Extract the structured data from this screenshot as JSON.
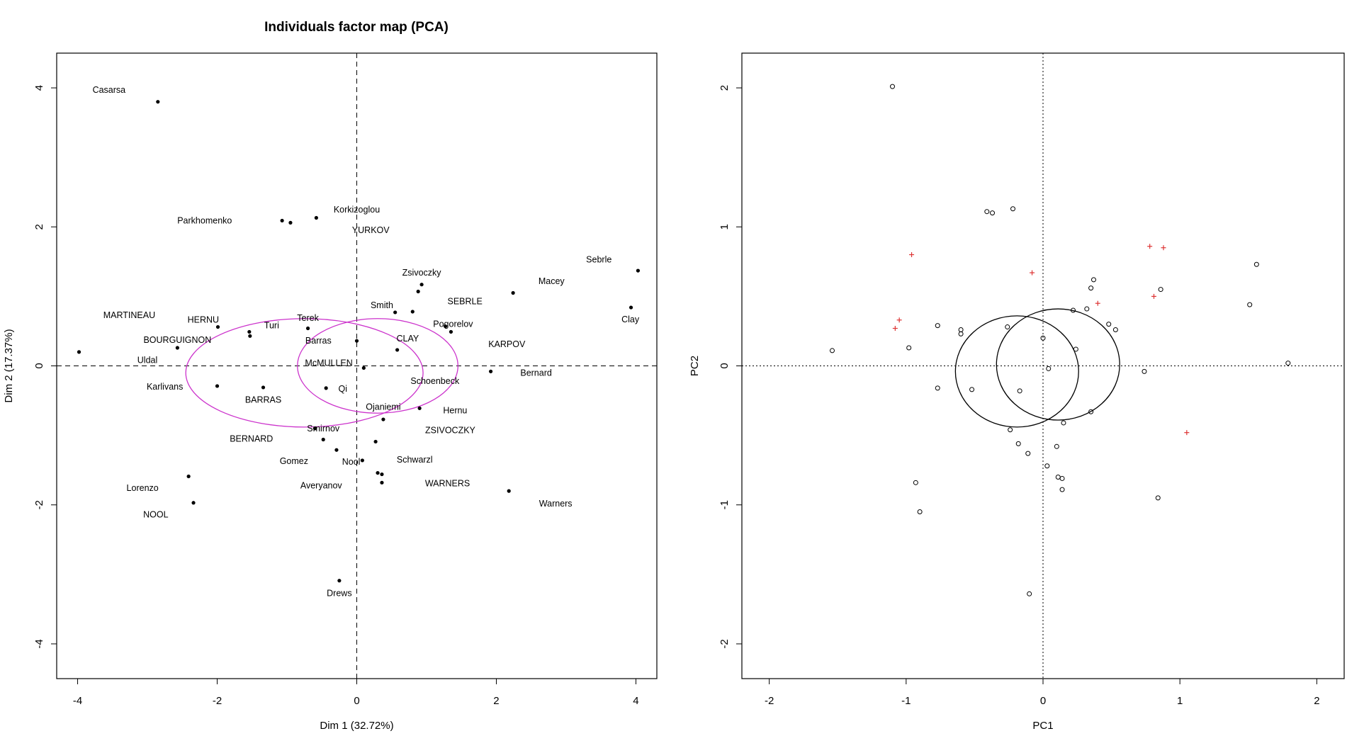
{
  "chart_data": [
    {
      "type": "scatter",
      "title": "Individuals factor map (PCA)",
      "xlabel": "Dim 1 (32.72%)",
      "ylabel": "Dim 2 (17.37%)",
      "xlim": [
        -4.3,
        4.3
      ],
      "ylim": [
        -4.5,
        4.5
      ],
      "xticks": [
        -4,
        -2,
        0,
        2,
        4
      ],
      "yticks": [
        -4,
        -2,
        0,
        2,
        4
      ],
      "reference_lines": "dashed lines at x = 0 and y = 0",
      "grid": false,
      "legend": "none",
      "point_color": "#000000",
      "ellipse_color": "#cc33cc",
      "ellipses": [
        {
          "cx": -0.75,
          "cy": -0.1,
          "rx": 1.7,
          "ry": 0.78
        },
        {
          "cx": 0.3,
          "cy": 0.0,
          "rx": 1.15,
          "ry": 0.68
        }
      ],
      "points": [
        {
          "x": -2.85,
          "y": 3.8
        },
        {
          "x": -1.07,
          "y": 2.09
        },
        {
          "x": -0.95,
          "y": 2.06
        },
        {
          "x": -0.58,
          "y": 2.13
        },
        {
          "x": 0.93,
          "y": 1.17
        },
        {
          "x": 0.88,
          "y": 1.07
        },
        {
          "x": 2.24,
          "y": 1.05
        },
        {
          "x": 4.03,
          "y": 1.37
        },
        {
          "x": 3.93,
          "y": 0.84
        },
        {
          "x": 0.8,
          "y": 0.78
        },
        {
          "x": 0.55,
          "y": 0.77
        },
        {
          "x": 1.27,
          "y": 0.57
        },
        {
          "x": 1.35,
          "y": 0.49
        },
        {
          "x": -1.99,
          "y": 0.56
        },
        {
          "x": -1.54,
          "y": 0.49
        },
        {
          "x": -1.53,
          "y": 0.43
        },
        {
          "x": -0.7,
          "y": 0.54
        },
        {
          "x": -2.57,
          "y": 0.26
        },
        {
          "x": -3.98,
          "y": 0.2
        },
        {
          "x": 0.0,
          "y": 0.36
        },
        {
          "x": 0.58,
          "y": 0.23
        },
        {
          "x": 0.1,
          "y": -0.03
        },
        {
          "x": 1.92,
          "y": -0.08
        },
        {
          "x": -2.0,
          "y": -0.29
        },
        {
          "x": -1.34,
          "y": -0.31
        },
        {
          "x": -0.44,
          "y": -0.32
        },
        {
          "x": 0.9,
          "y": -0.61
        },
        {
          "x": 0.38,
          "y": -0.77
        },
        {
          "x": -0.6,
          "y": -0.9
        },
        {
          "x": -0.48,
          "y": -1.06
        },
        {
          "x": -0.29,
          "y": -1.21
        },
        {
          "x": 0.27,
          "y": -1.09
        },
        {
          "x": 0.08,
          "y": -1.36
        },
        {
          "x": 0.3,
          "y": -1.54
        },
        {
          "x": 0.36,
          "y": -1.56
        },
        {
          "x": 0.36,
          "y": -1.68
        },
        {
          "x": -2.41,
          "y": -1.59
        },
        {
          "x": -2.34,
          "y": -1.97
        },
        {
          "x": 2.18,
          "y": -1.8
        },
        {
          "x": -0.25,
          "y": -3.09
        }
      ],
      "labels": [
        {
          "text": "Casarsa",
          "x": -3.55,
          "y": 3.97
        },
        {
          "text": "Parkhomenko",
          "x": -2.18,
          "y": 2.09
        },
        {
          "text": "Korkizoglou",
          "x": 0.0,
          "y": 2.25
        },
        {
          "text": "YURKOV",
          "x": 0.2,
          "y": 1.95
        },
        {
          "text": "Sebrle",
          "x": 3.47,
          "y": 1.53
        },
        {
          "text": "Zsivoczky",
          "x": 0.93,
          "y": 1.34
        },
        {
          "text": "Macey",
          "x": 2.79,
          "y": 1.22
        },
        {
          "text": "SEBRLE",
          "x": 1.55,
          "y": 0.93
        },
        {
          "text": "Smith",
          "x": 0.36,
          "y": 0.87
        },
        {
          "text": "MARTINEAU",
          "x": -3.26,
          "y": 0.73
        },
        {
          "text": "HERNU",
          "x": -2.2,
          "y": 0.66
        },
        {
          "text": "Terek",
          "x": -0.7,
          "y": 0.69
        },
        {
          "text": "Turi",
          "x": -1.22,
          "y": 0.58
        },
        {
          "text": "Pogorelov",
          "x": 1.38,
          "y": 0.6
        },
        {
          "text": "Clay",
          "x": 3.92,
          "y": 0.67
        },
        {
          "text": "CLAY",
          "x": 0.73,
          "y": 0.39
        },
        {
          "text": "BOURGUIGNON",
          "x": -2.57,
          "y": 0.37
        },
        {
          "text": "Barras",
          "x": -0.55,
          "y": 0.36
        },
        {
          "text": "KARPOV",
          "x": 2.15,
          "y": 0.31
        },
        {
          "text": "Uldal",
          "x": -3.0,
          "y": 0.08
        },
        {
          "text": "McMULLEN",
          "x": -0.4,
          "y": 0.04
        },
        {
          "text": "Bernard",
          "x": 2.57,
          "y": -0.1
        },
        {
          "text": "Schoenbeck",
          "x": 1.12,
          "y": -0.22
        },
        {
          "text": "Karlivans",
          "x": -2.75,
          "y": -0.3
        },
        {
          "text": "Qi",
          "x": -0.2,
          "y": -0.33
        },
        {
          "text": "BARRAS",
          "x": -1.34,
          "y": -0.49
        },
        {
          "text": "Ojaniemi",
          "x": 0.38,
          "y": -0.59
        },
        {
          "text": "Hernu",
          "x": 1.41,
          "y": -0.64
        },
        {
          "text": "ZSIVOCZKY",
          "x": 1.34,
          "y": -0.93
        },
        {
          "text": "Smirnov",
          "x": -0.48,
          "y": -0.9
        },
        {
          "text": "BERNARD",
          "x": -1.51,
          "y": -1.05
        },
        {
          "text": "Gomez",
          "x": -0.9,
          "y": -1.37
        },
        {
          "text": "Nool",
          "x": -0.08,
          "y": -1.38
        },
        {
          "text": "Schwarzl",
          "x": 0.83,
          "y": -1.35
        },
        {
          "text": "Averyanov",
          "x": -0.51,
          "y": -1.72
        },
        {
          "text": "WARNERS",
          "x": 1.3,
          "y": -1.69
        },
        {
          "text": "Lorenzo",
          "x": -3.07,
          "y": -1.76
        },
        {
          "text": "Warners",
          "x": 2.85,
          "y": -1.98
        },
        {
          "text": "NOOL",
          "x": -2.88,
          "y": -2.14
        },
        {
          "text": "Drews",
          "x": -0.25,
          "y": -3.27
        }
      ]
    },
    {
      "type": "scatter",
      "title": "",
      "xlabel": "PC1",
      "ylabel": "PC2",
      "xlim": [
        -2.2,
        2.2
      ],
      "ylim": [
        -2.25,
        2.25
      ],
      "xticks": [
        -2,
        -1,
        0,
        1,
        2
      ],
      "yticks": [
        -2,
        -1,
        0,
        1,
        2
      ],
      "reference_lines": "dotted lines at x = 0 and y = 0",
      "grid": false,
      "legend": "none",
      "series": [
        {
          "marker": "open circle",
          "color": "#000000",
          "points": [
            {
              "x": -1.1,
              "y": 2.01
            },
            {
              "x": -0.41,
              "y": 1.11
            },
            {
              "x": -0.37,
              "y": 1.1
            },
            {
              "x": -0.22,
              "y": 1.13
            },
            {
              "x": -1.54,
              "y": 0.11
            },
            {
              "x": -0.98,
              "y": 0.13
            },
            {
              "x": -0.77,
              "y": 0.29
            },
            {
              "x": -0.6,
              "y": 0.26
            },
            {
              "x": -0.6,
              "y": 0.23
            },
            {
              "x": -0.26,
              "y": 0.28
            },
            {
              "x": 0.0,
              "y": 0.2
            },
            {
              "x": 0.22,
              "y": 0.4
            },
            {
              "x": 0.32,
              "y": 0.41
            },
            {
              "x": 0.35,
              "y": 0.56
            },
            {
              "x": 0.37,
              "y": 0.62
            },
            {
              "x": 0.48,
              "y": 0.3
            },
            {
              "x": 0.53,
              "y": 0.26
            },
            {
              "x": 0.86,
              "y": 0.55
            },
            {
              "x": 1.51,
              "y": 0.44
            },
            {
              "x": 1.56,
              "y": 0.73
            },
            {
              "x": 1.79,
              "y": 0.02
            },
            {
              "x": 0.74,
              "y": -0.04
            },
            {
              "x": 0.24,
              "y": 0.12
            },
            {
              "x": 0.04,
              "y": -0.02
            },
            {
              "x": -0.77,
              "y": -0.16
            },
            {
              "x": -0.52,
              "y": -0.17
            },
            {
              "x": -0.17,
              "y": -0.18
            },
            {
              "x": 0.15,
              "y": -0.41
            },
            {
              "x": 0.35,
              "y": -0.33
            },
            {
              "x": -0.24,
              "y": -0.46
            },
            {
              "x": -0.18,
              "y": -0.56
            },
            {
              "x": -0.11,
              "y": -0.63
            },
            {
              "x": 0.1,
              "y": -0.58
            },
            {
              "x": 0.03,
              "y": -0.72
            },
            {
              "x": 0.11,
              "y": -0.8
            },
            {
              "x": 0.14,
              "y": -0.81
            },
            {
              "x": 0.14,
              "y": -0.89
            },
            {
              "x": -0.93,
              "y": -0.84
            },
            {
              "x": -0.9,
              "y": -1.05
            },
            {
              "x": 0.84,
              "y": -0.95
            },
            {
              "x": -0.1,
              "y": -1.64
            }
          ]
        },
        {
          "marker": "plus",
          "color": "#dd3333",
          "points": [
            {
              "x": -0.96,
              "y": 0.8
            },
            {
              "x": -1.05,
              "y": 0.33
            },
            {
              "x": -1.08,
              "y": 0.27
            },
            {
              "x": -0.08,
              "y": 0.67
            },
            {
              "x": 0.78,
              "y": 0.86
            },
            {
              "x": 0.88,
              "y": 0.85
            },
            {
              "x": 0.81,
              "y": 0.5
            },
            {
              "x": 0.4,
              "y": 0.45
            },
            {
              "x": 1.05,
              "y": -0.48
            }
          ]
        }
      ],
      "ellipses": [
        {
          "cx": -0.19,
          "cy": -0.04,
          "rx": 0.45,
          "ry": 0.4
        },
        {
          "cx": 0.11,
          "cy": 0.01,
          "rx": 0.45,
          "ry": 0.4
        }
      ],
      "ellipse_color": "#000000"
    }
  ]
}
